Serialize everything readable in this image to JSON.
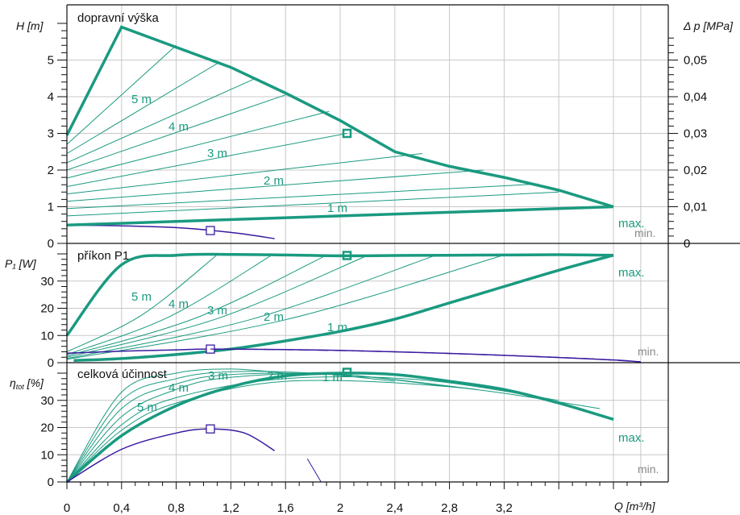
{
  "colors": {
    "teal": "#1a9a80",
    "purple": "#3a1aa0",
    "grid": "#c8c8c8",
    "gray": "#888888",
    "axis": "#111111"
  },
  "chart_data": [
    {
      "type": "line",
      "title": "dopravní výška",
      "ylabel": "H [m]",
      "y2label": "Δ p [MPa]",
      "xlim": [
        0,
        4.6
      ],
      "ylim": [
        0,
        6
      ],
      "yticks": [
        0,
        1,
        2,
        3,
        4,
        5
      ],
      "y2ticks": [
        "0",
        "0,01",
        "0,02",
        "0,03",
        "0,04",
        "0,05"
      ],
      "grid": true,
      "series": [
        {
          "name": "max.",
          "x": [
            0,
            0.4,
            0.8,
            1.2,
            1.6,
            2.0,
            2.4,
            2.8,
            3.2,
            3.6,
            4.0
          ],
          "y": [
            2.95,
            5.9,
            5.35,
            4.8,
            4.1,
            3.35,
            2.5,
            2.1,
            1.8,
            1.45,
            1.0
          ],
          "role": "max"
        },
        {
          "name": "min.",
          "x": [
            0,
            0.4,
            0.8,
            1.2,
            1.52
          ],
          "y": [
            0.5,
            0.48,
            0.43,
            0.3,
            0.13
          ],
          "role": "min"
        }
      ],
      "markers": [
        {
          "x": 2.05,
          "y": 3.0,
          "role": "max"
        },
        {
          "x": 1.05,
          "y": 0.35,
          "role": "min"
        }
      ],
      "annotations": [
        "5 m",
        "4 m",
        "3 m",
        "2 m",
        "1 m",
        "max.",
        "min."
      ]
    },
    {
      "type": "line",
      "title": "příkon P1",
      "ylabel": "P₁ [W]",
      "xlim": [
        0,
        4.6
      ],
      "ylim": [
        0,
        40
      ],
      "yticks": [
        0,
        10,
        20,
        30
      ],
      "grid": true,
      "series": [
        {
          "name": "max.",
          "x": [
            0,
            0.4,
            0.8,
            1.2,
            1.6,
            2.0,
            2.4,
            2.8,
            3.2,
            3.6,
            4.0
          ],
          "y": [
            10,
            36,
            39.5,
            39.8,
            39.6,
            39.3,
            39.4,
            39.5,
            39.6,
            39.7,
            39.5
          ],
          "role": "max"
        },
        {
          "name": "1 m",
          "x": [
            0.05,
            0.4,
            0.8,
            1.2,
            1.6,
            2.0,
            2.4,
            2.8,
            3.2,
            3.6,
            4.0
          ],
          "y": [
            0.8,
            1.5,
            3,
            5,
            8,
            11.5,
            16,
            22,
            28,
            34,
            39.5
          ],
          "role": "max"
        },
        {
          "name": "min.",
          "x": [
            0,
            0.4,
            0.8,
            1.05,
            1.6,
            2.0,
            2.4,
            2.8,
            3.2,
            3.6,
            4.0,
            4.2
          ],
          "y": [
            3.5,
            4.2,
            4.7,
            5,
            4.8,
            4.5,
            4.0,
            3.4,
            2.7,
            1.9,
            1.0,
            0.3
          ],
          "role": "min"
        }
      ],
      "markers": [
        {
          "x": 2.05,
          "y": 39.4,
          "role": "max"
        },
        {
          "x": 1.05,
          "y": 5,
          "role": "min"
        }
      ],
      "annotations": [
        "5 m",
        "4 m",
        "3 m",
        "2 m",
        "1 m",
        "max.",
        "min."
      ]
    },
    {
      "type": "line",
      "title": "celková účinnost",
      "ylabel": "η_tot [%]",
      "xlabel": "Q [m³/h]",
      "xlim": [
        0,
        4.6
      ],
      "ylim": [
        0,
        40
      ],
      "xticks": [
        "0",
        "0,4",
        "0,8",
        "1,2",
        "1,6",
        "2",
        "2,4",
        "2,8",
        "3,2",
        "Q [m³/h]"
      ],
      "yticks": [
        0,
        10,
        20,
        30
      ],
      "grid": true,
      "series": [
        {
          "name": "max.",
          "x": [
            0,
            0.4,
            0.8,
            1.2,
            1.6,
            2.0,
            2.4,
            2.8,
            3.2,
            3.6,
            4.0
          ],
          "y": [
            0,
            17,
            28,
            35,
            39,
            40,
            39.5,
            37,
            34,
            29,
            23
          ],
          "role": "max"
        },
        {
          "name": "min.",
          "x": [
            0,
            0.4,
            0.8,
            1.05,
            1.3,
            1.52
          ],
          "y": [
            0,
            12,
            18,
            19.5,
            18,
            11.5
          ],
          "role": "min"
        }
      ],
      "markers": [
        {
          "x": 2.05,
          "y": 40.3,
          "role": "max"
        },
        {
          "x": 1.05,
          "y": 19.5,
          "role": "min"
        }
      ],
      "annotations": [
        "5 m",
        "4 m",
        "3 m",
        "2 m",
        "1 m",
        "max.",
        "min."
      ]
    }
  ],
  "labels": {
    "p1_title": "dopravní výška",
    "p1_ylabel": "H [m]",
    "p1_y2label": "Δ p [MPa]",
    "p2_title": "příkon P1",
    "p2_ylabel": "P₁ [W]",
    "p3_title": "celková účinnost",
    "p3_ylabel": "η",
    "p3_ylabel_sub": "tot",
    "p3_ylabel_unit": " [%]",
    "x_axis_label": "Q [m³/h]",
    "max": "max.",
    "min": "min.",
    "m5": "5 m",
    "m4": "4 m",
    "m3": "3 m",
    "m2": "2 m",
    "m1": "1 m"
  },
  "ticks": {
    "x": [
      "0",
      "0,4",
      "0,8",
      "1,2",
      "1,6",
      "2",
      "2,4",
      "2,8",
      "3,2"
    ],
    "p1_y": [
      "0",
      "1",
      "2",
      "3",
      "4",
      "5"
    ],
    "p1_y2": [
      "0",
      "0,01",
      "0,02",
      "0,03",
      "0,04",
      "0,05"
    ],
    "p2_y": [
      "0",
      "10",
      "20",
      "30"
    ],
    "p3_y": [
      "0",
      "10",
      "20",
      "30"
    ]
  }
}
